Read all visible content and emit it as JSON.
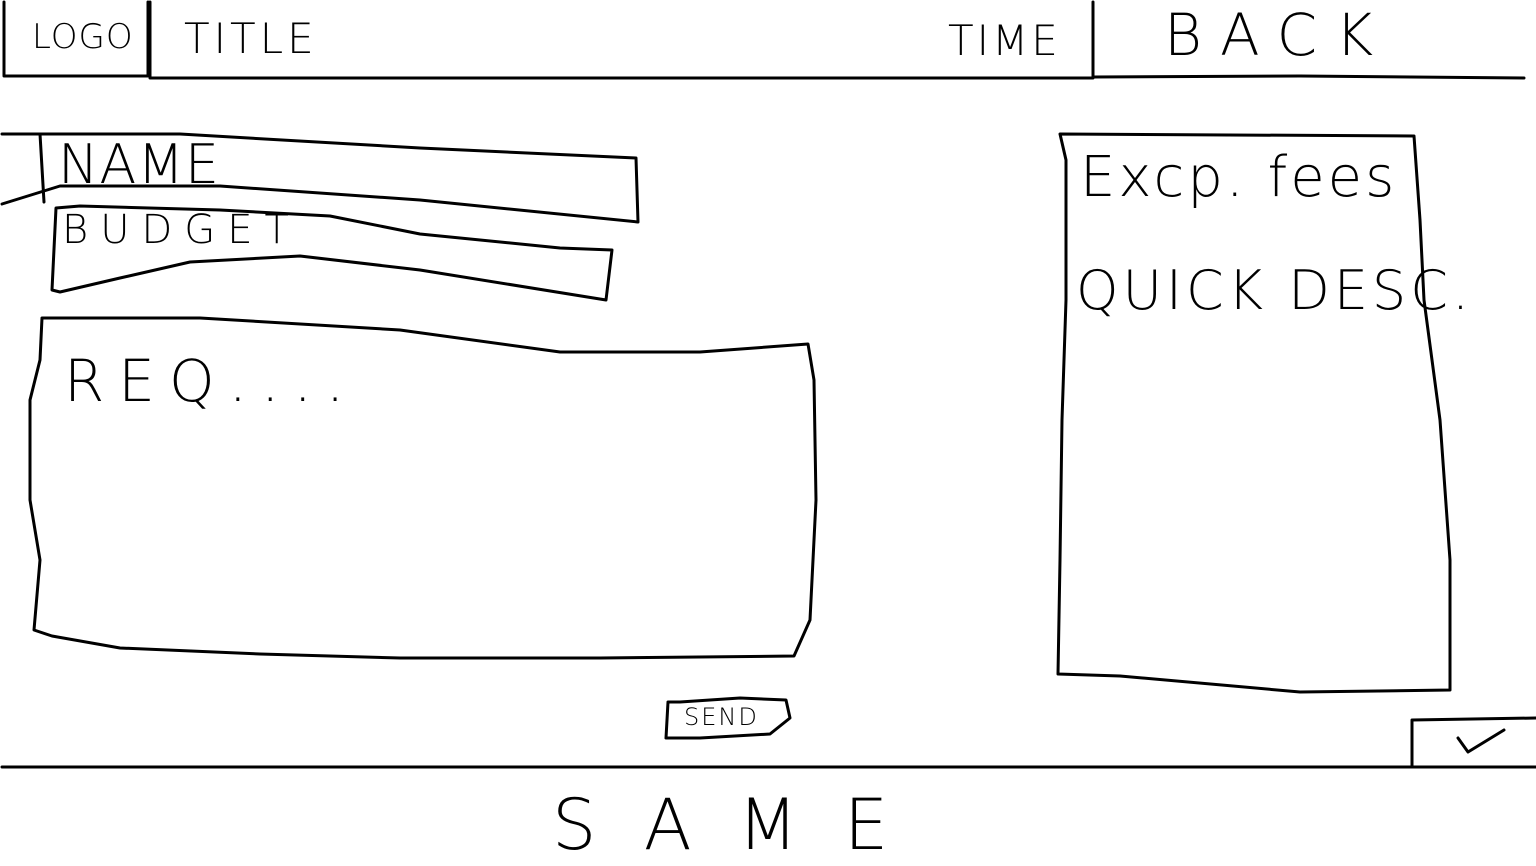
{
  "header": {
    "logo_text": "LOGO",
    "title": "TITLE",
    "time": "TIME",
    "back_label": "BACK"
  },
  "form": {
    "name_label": "NAME",
    "budget_label": "BUDGET",
    "request_placeholder": "REQ....",
    "send_label": "SEND"
  },
  "sidebar": {
    "fees_label": "Excp. fees",
    "description_label": "QUICK DESC."
  },
  "footer": {
    "text": "SAME"
  },
  "icons": {
    "confirm": "check-icon"
  }
}
